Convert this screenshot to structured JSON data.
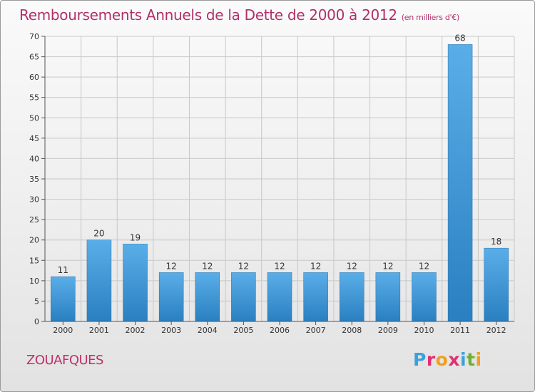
{
  "title": "Remboursements Annuels de la Dette de 2000 à 2012",
  "unit_label": "(en milliers d'€)",
  "town": "ZOUAFQUES",
  "logo": {
    "letters": [
      "P",
      "r",
      "o",
      "x",
      "i",
      "t",
      "i"
    ],
    "colors": [
      "#3aa1dc",
      "#e03070",
      "#f0a020",
      "#e03070",
      "#3aa1dc",
      "#70b030",
      "#f0a020"
    ]
  },
  "colors": {
    "title": "#b0306a",
    "bar_light": "#5aaee8",
    "bar_dark": "#2a7fc0",
    "grid": "#c8c8c8"
  },
  "chart_data": {
    "type": "bar",
    "title": "Remboursements Annuels de la Dette de 2000 à 2012",
    "categories": [
      "2000",
      "2001",
      "2002",
      "2003",
      "2004",
      "2005",
      "2006",
      "2007",
      "2008",
      "2009",
      "2010",
      "2011",
      "2012"
    ],
    "values": [
      11,
      20,
      19,
      12,
      12,
      12,
      12,
      12,
      12,
      12,
      12,
      68,
      18
    ],
    "value_labels": [
      "11",
      "20",
      "19",
      "12",
      "12",
      "12",
      "12",
      "12",
      "12",
      "12",
      "12",
      "68",
      "18"
    ],
    "ylim": [
      0,
      70
    ],
    "yticks": [
      0,
      5,
      10,
      15,
      20,
      25,
      30,
      35,
      40,
      45,
      50,
      55,
      60,
      65,
      70
    ],
    "xlabel": "",
    "ylabel": "",
    "grid": true
  }
}
